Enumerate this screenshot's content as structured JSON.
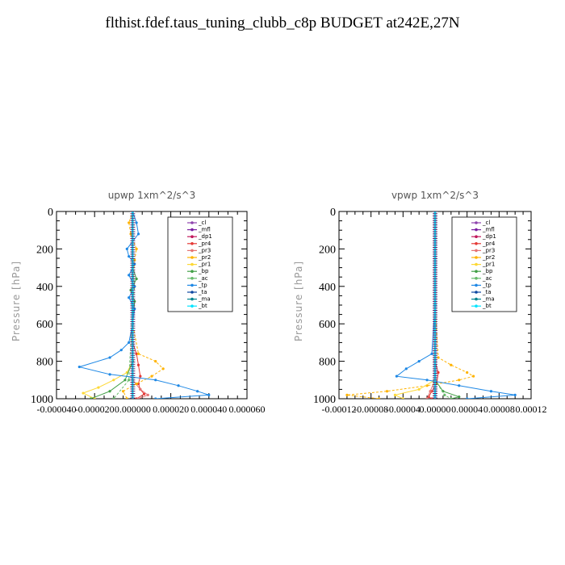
{
  "title": "flthist.fdef.taus_tuning_clubb_c8p  BUDGET at242E,27N",
  "chart_data": [
    {
      "type": "line",
      "title": "upwp   1xm^2/s^3",
      "ylabel": "Pressure [hPa]",
      "ylim": [
        1000,
        0
      ],
      "xlim": [
        -4e-05,
        6e-05
      ],
      "xticks": [
        "-0.000040",
        "-0.000020",
        "0.000000",
        "0.000020",
        "0.000040",
        "0.000060"
      ],
      "yticks": [
        "0",
        "200",
        "400",
        "600",
        "800",
        "1000"
      ],
      "legend_position": "top-right",
      "series": [
        {
          "name": "_cl",
          "color": "#8e44ad",
          "p": [
            0,
            500,
            1000
          ],
          "x": [
            0,
            0,
            0
          ]
        },
        {
          "name": "_mfl",
          "color": "#7b1fa2",
          "p": [
            0,
            500,
            1000
          ],
          "x": [
            0,
            0,
            0
          ]
        },
        {
          "name": "_dp1",
          "color": "#c2185b",
          "p": [
            0,
            500,
            1000
          ],
          "x": [
            0,
            0,
            0
          ]
        },
        {
          "name": "_pr4",
          "color": "#e53935",
          "p": [
            700,
            760,
            820,
            880,
            920,
            950,
            975,
            1000
          ],
          "x": [
            0,
            2e-06,
            3e-06,
            4e-06,
            3e-06,
            4e-06,
            6e-06,
            2e-06
          ]
        },
        {
          "name": "_pr3",
          "color": "#e57373",
          "p": [
            900,
            950,
            980,
            1000
          ],
          "x": [
            0,
            4e-06,
            8e-06,
            3e-06
          ]
        },
        {
          "name": "_pr2",
          "color": "#ffb300",
          "p": [
            0,
            60,
            120,
            200,
            260,
            400,
            600,
            760,
            800,
            840,
            880,
            920,
            960,
            1000
          ],
          "x": [
            0,
            -2e-06,
            -1e-06,
            2e-06,
            1e-06,
            0,
            0,
            3e-06,
            1.2e-05,
            1.6e-05,
            1e-05,
            2e-06,
            -5e-06,
            -3e-06
          ]
        },
        {
          "name": "_pr1",
          "color": "#fdd835",
          "p": [
            800,
            860,
            900,
            940,
            970,
            1000
          ],
          "x": [
            0,
            -3e-06,
            -1e-05,
            -1.8e-05,
            -2.6e-05,
            -2e-05
          ]
        },
        {
          "name": "_bp",
          "color": "#43a047",
          "p": [
            300,
            360,
            420,
            480,
            600,
            800,
            900,
            960,
            1000
          ],
          "x": [
            0,
            2e-06,
            -1e-06,
            1e-06,
            0,
            0,
            -4e-06,
            -1.2e-05,
            -2.2e-05
          ]
        },
        {
          "name": "_ac",
          "color": "#66bb6a",
          "p": [
            300,
            400,
            500,
            900,
            1000
          ],
          "x": [
            0,
            1e-06,
            0,
            -2e-06,
            -1e-05
          ]
        },
        {
          "name": "_tp",
          "color": "#1e88e5",
          "p": [
            0,
            60,
            120,
            200,
            240,
            280,
            340,
            400,
            460,
            520,
            600,
            700,
            740,
            780,
            830,
            870,
            900,
            930,
            960,
            980,
            1000
          ],
          "x": [
            0,
            2e-06,
            3e-06,
            -3e-06,
            -2e-06,
            1e-06,
            -2e-06,
            1e-06,
            -2e-06,
            1e-06,
            0,
            -2e-06,
            -6e-06,
            -1.2e-05,
            -2.8e-05,
            -1.2e-05,
            1.2e-05,
            2.4e-05,
            3.4e-05,
            4e-05,
            1.2e-05
          ]
        },
        {
          "name": "_ta",
          "color": "#0d47a1",
          "p": [
            0,
            500,
            1000
          ],
          "x": [
            0,
            0,
            0
          ]
        },
        {
          "name": "_ma",
          "color": "#00838f",
          "p": [
            0,
            500,
            1000
          ],
          "x": [
            0,
            0,
            0
          ]
        },
        {
          "name": "_bt",
          "color": "#00e5ff",
          "p": [
            0,
            500,
            1000
          ],
          "x": [
            0,
            0,
            0
          ]
        }
      ]
    },
    {
      "type": "line",
      "title": "vpwp   1xm^2/s^3",
      "ylabel": "Pressure [hPa]",
      "ylim": [
        1000,
        0
      ],
      "xlim": [
        -0.00012,
        0.00012
      ],
      "xticks": [
        "-0.00012",
        "-0.00008",
        "-0.00004",
        "0.00000",
        "0.00004",
        "0.00008",
        "0.00012"
      ],
      "yticks": [
        "0",
        "200",
        "400",
        "600",
        "800",
        "1000"
      ],
      "legend_position": "top-right",
      "series": [
        {
          "name": "_cl",
          "color": "#8e44ad",
          "p": [
            0,
            500,
            1000
          ],
          "x": [
            0,
            0,
            0
          ]
        },
        {
          "name": "_mfl",
          "color": "#7b1fa2",
          "p": [
            0,
            500,
            1000
          ],
          "x": [
            0,
            0,
            0
          ]
        },
        {
          "name": "_dp1",
          "color": "#c2185b",
          "p": [
            0,
            500,
            1000
          ],
          "x": [
            0,
            0,
            0
          ]
        },
        {
          "name": "_pr4",
          "color": "#e53935",
          "p": [
            800,
            860,
            920,
            960,
            990,
            1000
          ],
          "x": [
            0,
            4e-06,
            2e-06,
            -4e-06,
            -8e-06,
            -4e-06
          ]
        },
        {
          "name": "_pr3",
          "color": "#e57373",
          "p": [
            900,
            960,
            1000
          ],
          "x": [
            0,
            -6e-06,
            -1e-05
          ]
        },
        {
          "name": "_pr2",
          "color": "#ffb300",
          "p": [
            0,
            500,
            780,
            820,
            860,
            880,
            900,
            930,
            960,
            980,
            1000
          ],
          "x": [
            0,
            0,
            4e-06,
            2e-05,
            4e-05,
            4.8e-05,
            3e-05,
            -1e-05,
            -6e-05,
            -0.00011,
            -7e-05
          ]
        },
        {
          "name": "_pr1",
          "color": "#fdd835",
          "p": [
            900,
            950,
            980,
            1000
          ],
          "x": [
            0,
            -2e-05,
            -5e-05,
            -4e-05
          ]
        },
        {
          "name": "_bp",
          "color": "#43a047",
          "p": [
            900,
            960,
            990,
            1000
          ],
          "x": [
            0,
            1e-05,
            3e-05,
            2e-05
          ]
        },
        {
          "name": "_ac",
          "color": "#66bb6a",
          "p": [
            900,
            980,
            1000
          ],
          "x": [
            0,
            1.2e-05,
            2e-05
          ]
        },
        {
          "name": "_tp",
          "color": "#1e88e5",
          "p": [
            0,
            500,
            760,
            800,
            840,
            880,
            900,
            930,
            960,
            980,
            1000
          ],
          "x": [
            0,
            0,
            -4e-06,
            -2e-05,
            -3.6e-05,
            -4.8e-05,
            -1e-05,
            3e-05,
            7e-05,
            0.0001,
            4e-05
          ]
        },
        {
          "name": "_ta",
          "color": "#0d47a1",
          "p": [
            0,
            500,
            1000
          ],
          "x": [
            0,
            0,
            0
          ]
        },
        {
          "name": "_ma",
          "color": "#00838f",
          "p": [
            0,
            500,
            1000
          ],
          "x": [
            0,
            0,
            0
          ]
        },
        {
          "name": "_bt",
          "color": "#00e5ff",
          "p": [
            0,
            500,
            1000
          ],
          "x": [
            0,
            0,
            0
          ]
        }
      ]
    }
  ]
}
